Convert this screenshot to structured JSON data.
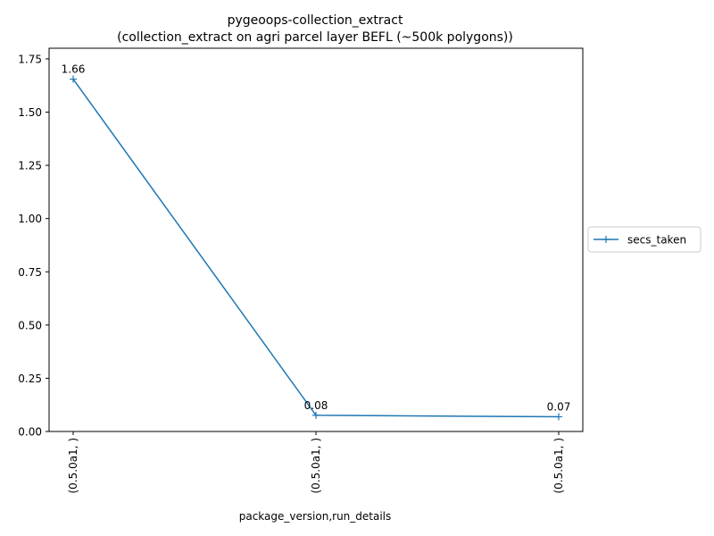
{
  "chart_data": {
    "type": "line",
    "title": "pygeoops-collection_extract",
    "subtitle": "(collection_extract on agri parcel layer BEFL (~500k polygons))",
    "xlabel": "package_version,run_details",
    "ylabel": "",
    "categories": [
      "(0.5.0a1, )",
      "(0.5.0a1, )",
      "(0.5.0a1, )"
    ],
    "series": [
      {
        "name": "secs_taken",
        "values": [
          1.655,
          0.076,
          0.069
        ],
        "labels": [
          "1.66",
          "0.08",
          "0.07"
        ],
        "color": "#1f77b4",
        "marker": "+"
      }
    ],
    "ylim": [
      0,
      1.8
    ],
    "yticks": [
      "0.00",
      "0.25",
      "0.50",
      "0.75",
      "1.00",
      "1.25",
      "1.50",
      "1.75"
    ],
    "grid": false,
    "legend_position": "center-right outside"
  }
}
